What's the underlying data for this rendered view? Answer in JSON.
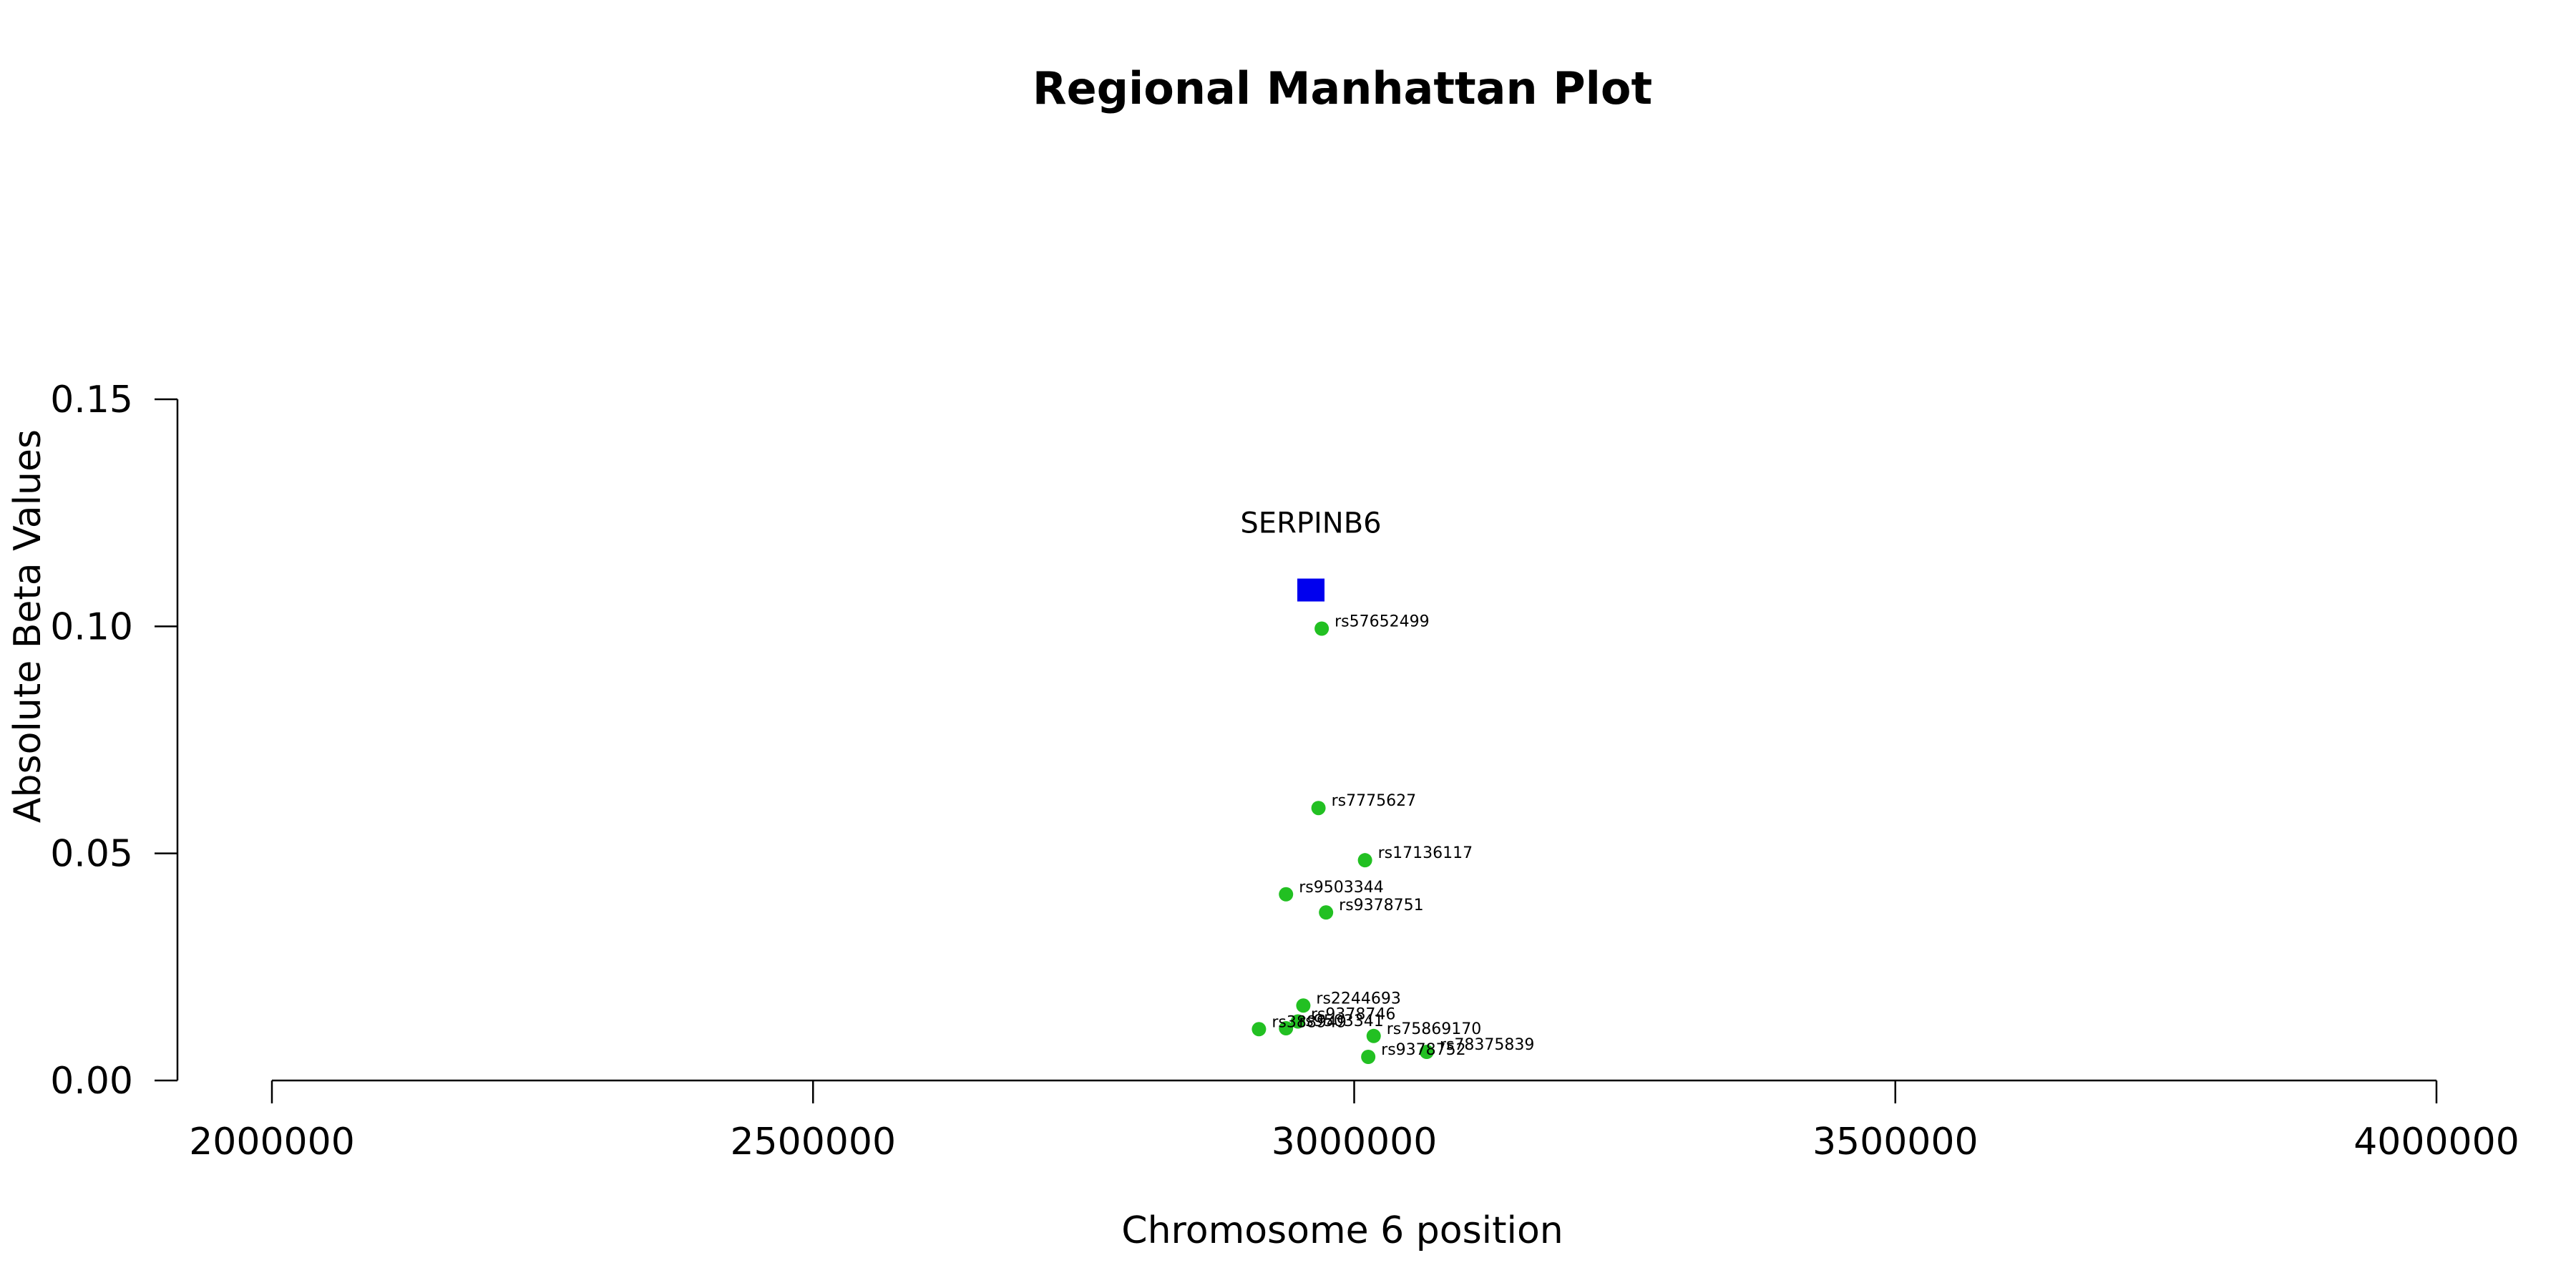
{
  "colors": {
    "snp_point": "#22c022",
    "gene_marker": "#0000ee",
    "axis": "#000000",
    "background": "#ffffff"
  },
  "chart_data": {
    "type": "scatter",
    "title": "Regional Manhattan Plot",
    "xlabel": "Chromosome 6 position",
    "ylabel": "Absolute Beta Values",
    "xlim": [
      2000000,
      4000000
    ],
    "ylim": [
      0,
      0.15
    ],
    "xticks": [
      {
        "value": 2000000,
        "label": "2000000"
      },
      {
        "value": 2500000,
        "label": "2500000"
      },
      {
        "value": 3000000,
        "label": "3000000"
      },
      {
        "value": 3500000,
        "label": "3500000"
      },
      {
        "value": 4000000,
        "label": "4000000"
      }
    ],
    "yticks": [
      {
        "value": 0.0,
        "label": "0.00"
      },
      {
        "value": 0.05,
        "label": "0.05"
      },
      {
        "value": 0.1,
        "label": "0.10"
      },
      {
        "value": 0.15,
        "label": "0.15"
      }
    ],
    "grid": false,
    "gene": {
      "name": "SERPINB6",
      "x": 2960000,
      "y": 0.108,
      "marker": "square"
    },
    "series": [
      {
        "marker": "circle",
        "points": [
          {
            "x": 2970000,
            "y": 0.0995,
            "label": "rs57652499"
          },
          {
            "x": 2967000,
            "y": 0.06,
            "label": "rs7775627"
          },
          {
            "x": 3010000,
            "y": 0.0485,
            "label": "rs17136117"
          },
          {
            "x": 2937000,
            "y": 0.041,
            "label": "rs9503344"
          },
          {
            "x": 2974000,
            "y": 0.037,
            "label": "rs9378751"
          },
          {
            "x": 2953000,
            "y": 0.0165,
            "label": "rs2244693"
          },
          {
            "x": 2948000,
            "y": 0.013,
            "label": "rs9378746"
          },
          {
            "x": 2937000,
            "y": 0.0115,
            "label": "rs9503341"
          },
          {
            "x": 2912000,
            "y": 0.0113,
            "label": "rs388949"
          },
          {
            "x": 3018000,
            "y": 0.0098,
            "label": "rs75869170"
          },
          {
            "x": 3067000,
            "y": 0.0063,
            "label": "rs78375839"
          },
          {
            "x": 3013000,
            "y": 0.0052,
            "label": "rs9378752"
          }
        ]
      }
    ]
  }
}
